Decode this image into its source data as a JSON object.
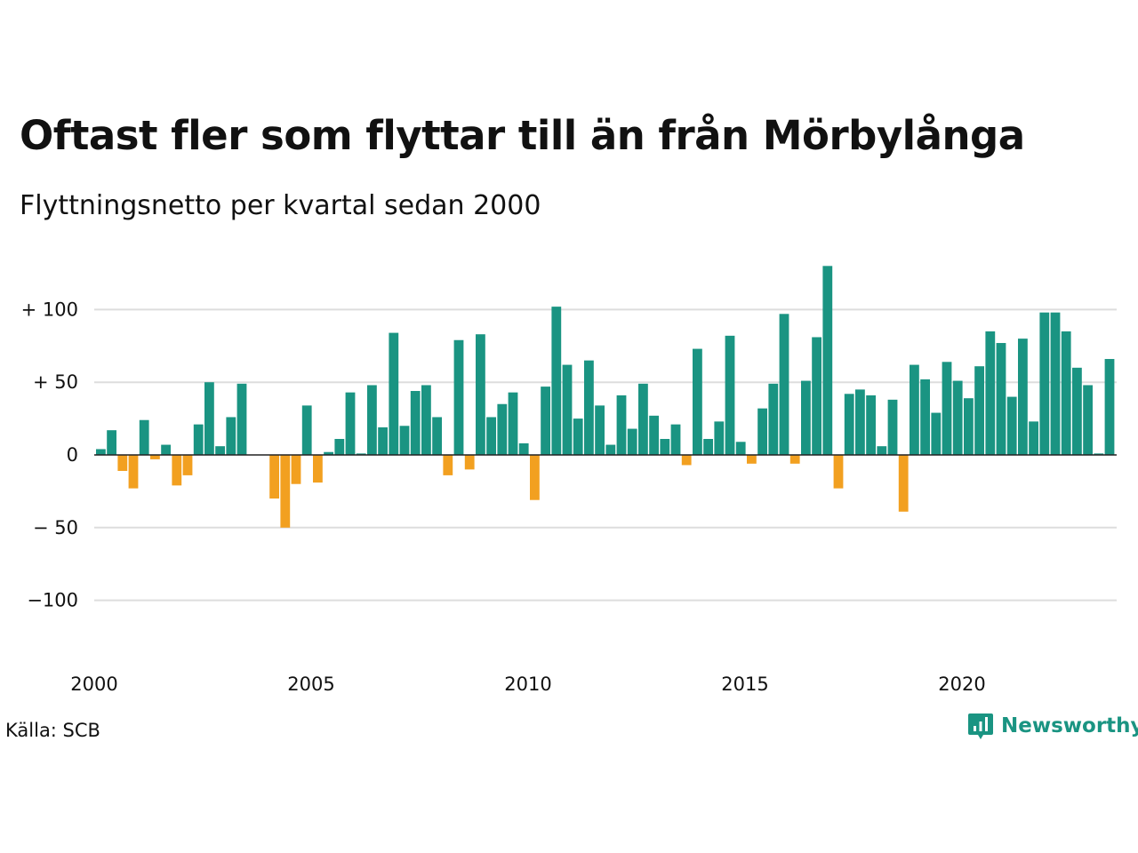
{
  "title": "Oftast fler som flyttar till än från Mörbylånga",
  "subtitle": "Flyttningsnetto per kvartal sedan 2000",
  "source": "Källa: SCB",
  "brand": {
    "name": "Newsworthy",
    "icon": "newsworthy-logo-icon",
    "color": "#1a9482"
  },
  "colors": {
    "positive": "#1a9482",
    "negative": "#f2a020",
    "grid": "#dddddd",
    "zero_line": "#222222"
  },
  "chart_data": {
    "type": "bar",
    "x_start": "2000 Q1",
    "frequency": "quarterly",
    "ylim": [
      -140,
      135
    ],
    "grid": true,
    "y_ticks": [
      {
        "value": 100,
        "label": "+ 100"
      },
      {
        "value": 50,
        "label": "+  50"
      },
      {
        "value": 0,
        "label": "0"
      },
      {
        "value": -50,
        "label": "− 50"
      },
      {
        "value": -100,
        "label": "−100"
      }
    ],
    "x_ticks": [
      {
        "year": 2000,
        "label": "2000"
      },
      {
        "year": 2005,
        "label": "2005"
      },
      {
        "year": 2010,
        "label": "2010"
      },
      {
        "year": 2015,
        "label": "2015"
      },
      {
        "year": 2020,
        "label": "2020"
      }
    ],
    "values": [
      4,
      17,
      -11,
      -23,
      24,
      -3,
      7,
      -21,
      -14,
      21,
      50,
      6,
      26,
      49,
      0,
      0,
      -30,
      -50,
      -20,
      34,
      -19,
      2,
      11,
      43,
      1,
      48,
      19,
      84,
      20,
      44,
      48,
      26,
      -14,
      79,
      -10,
      83,
      26,
      35,
      43,
      8,
      -31,
      47,
      102,
      62,
      25,
      65,
      34,
      7,
      41,
      18,
      49,
      27,
      11,
      21,
      -7,
      73,
      11,
      23,
      82,
      9,
      -6,
      32,
      49,
      97,
      -6,
      51,
      81,
      130,
      -23,
      42,
      45,
      41,
      6,
      38,
      -39,
      62,
      52,
      29,
      64,
      51,
      39,
      61,
      85,
      77,
      40,
      80,
      23,
      98,
      98,
      85,
      60,
      48,
      1,
      66
    ]
  }
}
